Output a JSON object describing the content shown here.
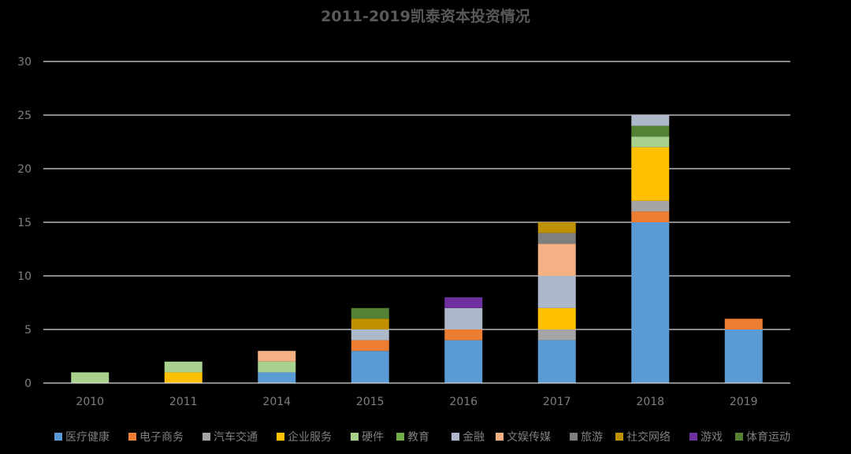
{
  "chart_data": {
    "type": "bar",
    "stacked": true,
    "title": "2011-2019凯泰资本投资情况",
    "xlabel": "",
    "ylabel": "",
    "categories": [
      "2010",
      "2011",
      "2014",
      "2015",
      "2016",
      "2017",
      "2018",
      "2019"
    ],
    "ylim": [
      0,
      30
    ],
    "yticks": [
      0,
      5,
      10,
      15,
      20,
      25,
      30
    ],
    "grid": true,
    "legend_position": "bottom",
    "series": [
      {
        "name": "医疗健康",
        "color": "#5B9BD5",
        "values": [
          0,
          0,
          1,
          3,
          4,
          4,
          15,
          5
        ]
      },
      {
        "name": "电子商务",
        "color": "#ED7D31",
        "values": [
          0,
          0,
          0,
          1,
          1,
          0,
          1,
          1
        ]
      },
      {
        "name": "汽车交通",
        "color": "#A5A5A5",
        "values": [
          0,
          0,
          0,
          0,
          0,
          1,
          1,
          0
        ]
      },
      {
        "name": "企业服务",
        "color": "#FFC000",
        "values": [
          0,
          1,
          0,
          0,
          0,
          2,
          5,
          0
        ]
      },
      {
        "name": "硬件",
        "color": "#A9D18E",
        "values": [
          1,
          1,
          1,
          0,
          0,
          0,
          1,
          0
        ]
      },
      {
        "name": "教育",
        "color": "#70AD47",
        "values": [
          0,
          0,
          0,
          0,
          0,
          0,
          0,
          0
        ]
      },
      {
        "name": "金融",
        "color": "#ADB9CA",
        "values": [
          0,
          0,
          0,
          1,
          2,
          3,
          0,
          0
        ]
      },
      {
        "name": "文娱传媒",
        "color": "#F4B183",
        "values": [
          0,
          0,
          1,
          0,
          0,
          3,
          0,
          0
        ]
      },
      {
        "name": "旅游",
        "color": "#7F7F7F",
        "values": [
          0,
          0,
          0,
          0,
          0,
          1,
          0,
          0
        ]
      },
      {
        "name": "社交网络",
        "color": "#BF9000",
        "values": [
          0,
          0,
          0,
          1,
          0,
          1,
          0,
          0
        ]
      },
      {
        "name": "游戏",
        "color": "#7030A0",
        "values": [
          0,
          0,
          0,
          0,
          1,
          0,
          0,
          0
        ]
      },
      {
        "name": "体育运动",
        "color": "#548235",
        "values": [
          0,
          0,
          0,
          1,
          0,
          0,
          1,
          0
        ]
      },
      {
        "name": "",
        "color": "#ADB9CA",
        "values": [
          0,
          0,
          0,
          0,
          0,
          0,
          1,
          0
        ]
      }
    ]
  }
}
